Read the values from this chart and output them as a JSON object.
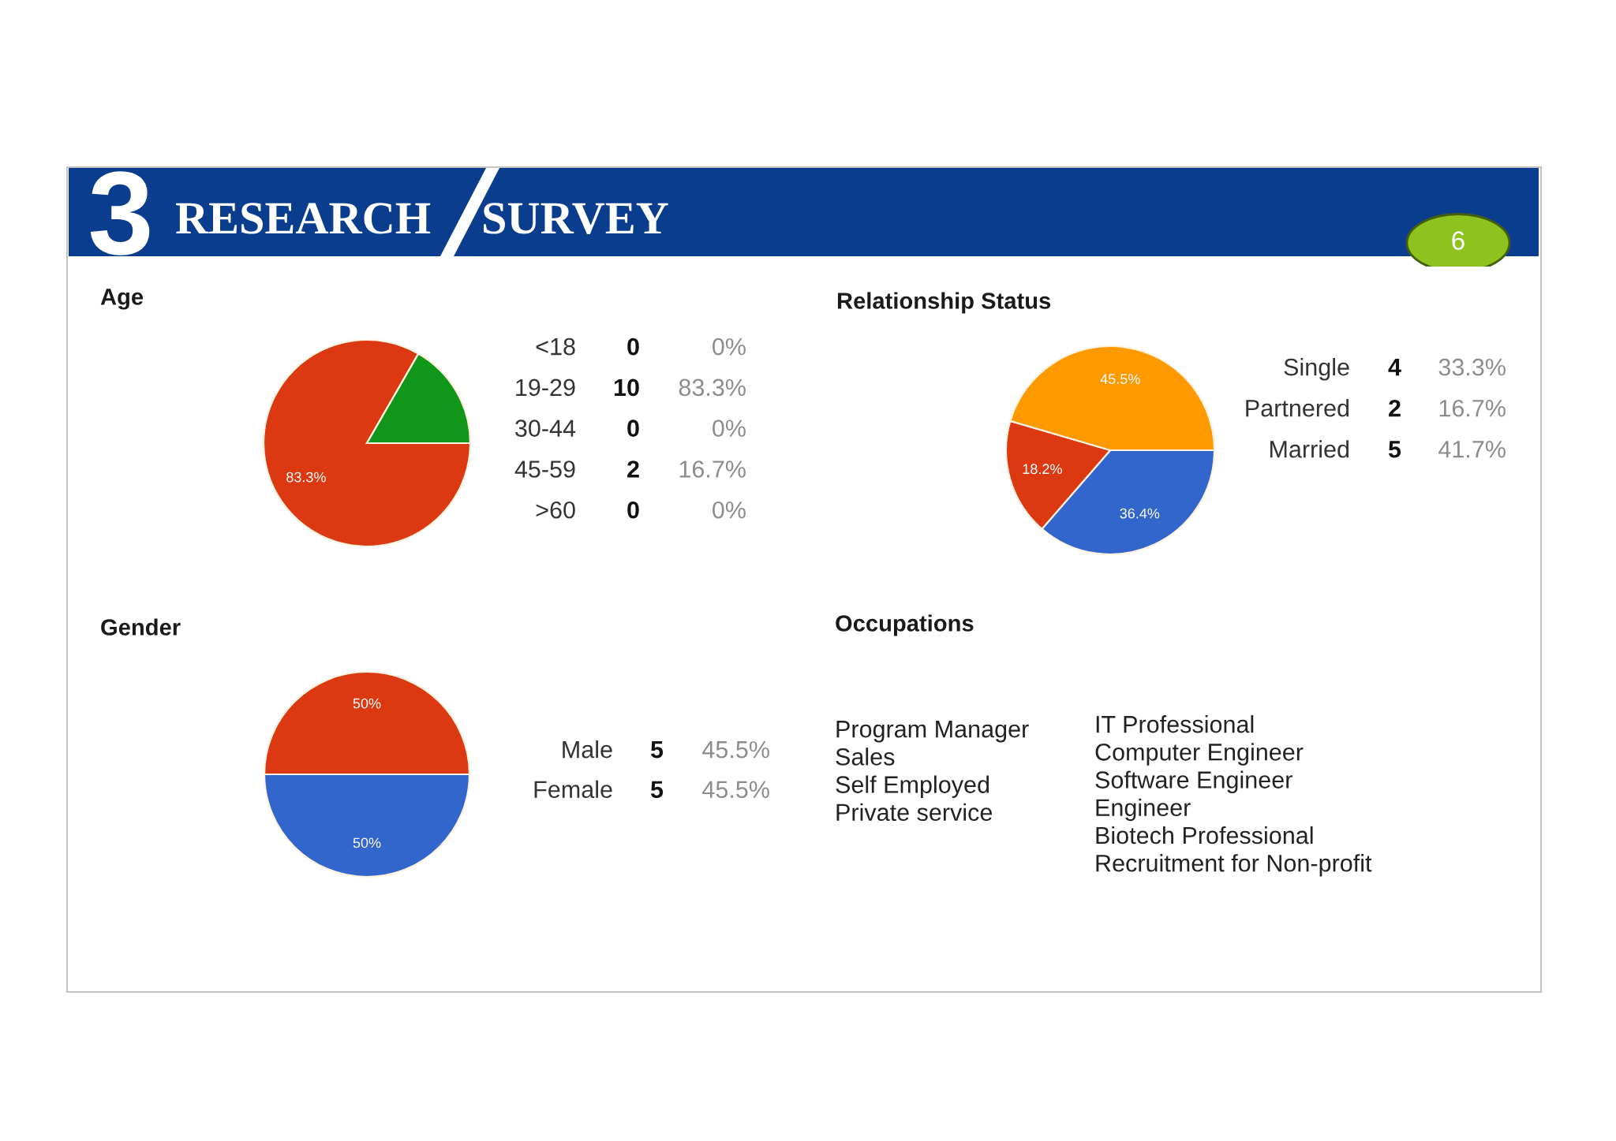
{
  "chart_data": [
    {
      "type": "other",
      "title": "RESEARCH SURVEY",
      "annotations": [
        "3",
        "6"
      ]
    },
    {
      "type": "pie",
      "title": "Age",
      "categories": [
        null,
        null
      ],
      "values": [
        83.3,
        16.7
      ],
      "colors": [
        "#dc3912",
        "#109618"
      ],
      "value_labels": [
        "83.3%",
        null
      ]
    },
    {
      "type": "other",
      "annotations": [
        "<18\n19-29\n30-44\n45-59\n>60",
        "0\n10\n0\n2\n0",
        "0%\n83.3%\n0%\n16.7%\n0%"
      ]
    },
    {
      "type": "pie",
      "title": "Relationship Status",
      "categories": [
        null,
        null,
        null
      ],
      "values": [
        36.4,
        18.2,
        45.5
      ],
      "colors": [
        "#3366cc",
        "#dc3912",
        "#ff9900"
      ],
      "value_labels": [
        "36.4%",
        "18.2%",
        "45.5%"
      ]
    },
    {
      "type": "other",
      "annotations": [
        "Single\nPartnered\nMarried",
        "4\n2\n5",
        "33.3%\n16.7%\n41.7%"
      ]
    },
    {
      "type": "pie",
      "title": "Gender",
      "categories": [
        null,
        null
      ],
      "values": [
        50,
        50
      ],
      "colors": [
        "#3366cc",
        "#dc3912"
      ],
      "value_labels": [
        "50%",
        "50%"
      ]
    },
    {
      "type": "other",
      "annotations": [
        "Male\nFemale",
        "5\n5",
        "45.5%\n45.5%"
      ]
    },
    {
      "type": "other",
      "title": "Occupations",
      "annotations": [
        "Program Manager\nSales\nSelf Employed\nPrivate service",
        "IT Professional\nComputer Engineer\nSoftware Engineer\nEngineer\nBiotech Professional\nRecruitment for Non-profit"
      ]
    }
  ]
}
